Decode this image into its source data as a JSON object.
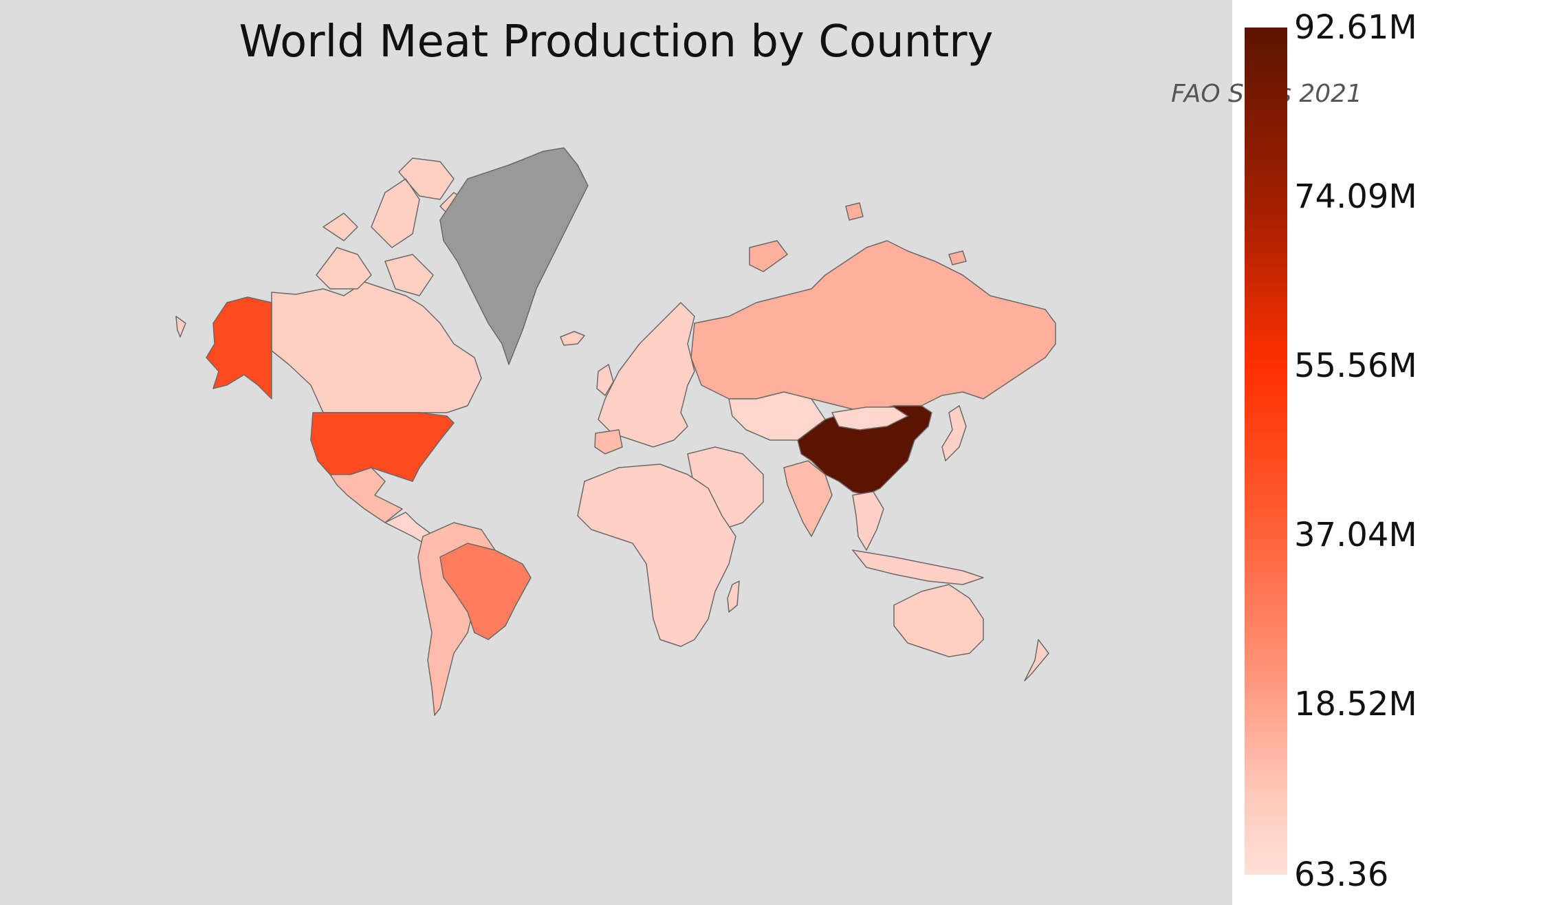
{
  "title": "World Meat Production by Country",
  "subtitle": "FAO Stats 2021",
  "legend": {
    "ticks": [
      "92.61M",
      "74.09M",
      "55.56M",
      "37.04M",
      "18.52M",
      "63.36"
    ],
    "colors": [
      "#5c1400",
      "#a62000",
      "#ff3000",
      "#ff5c33",
      "#ff9378",
      "#ffe0d8"
    ]
  },
  "colors": {
    "background": "#dddddd",
    "no_data": "#999999",
    "border": "#6a6a6a"
  }
}
